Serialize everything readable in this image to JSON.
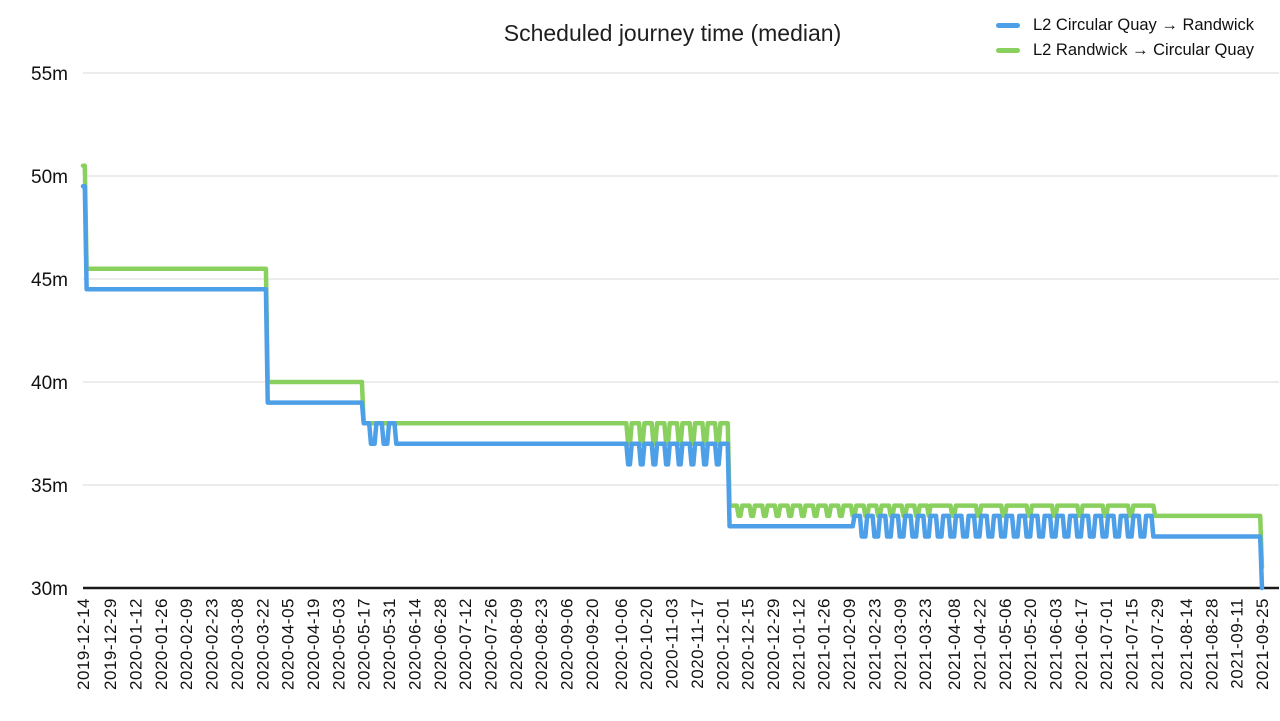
{
  "chart_data": {
    "type": "line",
    "title": "Scheduled journey time (median)",
    "ylabel": "",
    "xlabel": "",
    "y_unit": "minutes",
    "y_range": [
      30,
      55
    ],
    "y_ticks": [
      "30m",
      "35m",
      "40m",
      "45m",
      "50m",
      "55m"
    ],
    "y_tick_values": [
      30,
      35,
      40,
      45,
      50,
      55
    ],
    "grid": "horizontal",
    "legend_position": "top-right",
    "x_range": [
      "2019-12-14",
      "2021-09-25"
    ],
    "x_tick_labels": [
      "2019-12-14",
      "2019-12-29",
      "2020-01-12",
      "2020-01-26",
      "2020-02-09",
      "2020-02-23",
      "2020-03-08",
      "2020-03-22",
      "2020-04-05",
      "2020-04-19",
      "2020-05-03",
      "2020-05-17",
      "2020-05-31",
      "2020-06-14",
      "2020-06-28",
      "2020-07-12",
      "2020-07-26",
      "2020-08-09",
      "2020-08-23",
      "2020-09-06",
      "2020-09-20",
      "2020-10-06",
      "2020-10-20",
      "2020-11-03",
      "2020-11-17",
      "2020-12-01",
      "2020-12-15",
      "2020-12-29",
      "2021-01-12",
      "2021-01-26",
      "2021-02-09",
      "2021-02-23",
      "2021-03-09",
      "2021-03-23",
      "2021-04-08",
      "2021-04-22",
      "2021-05-06",
      "2021-05-20",
      "2021-06-03",
      "2021-06-17",
      "2021-07-01",
      "2021-07-15",
      "2021-07-29",
      "2021-08-14",
      "2021-08-28",
      "2021-09-11",
      "2021-09-25"
    ],
    "series": [
      {
        "name": "L2 Randwick → Circular Quay",
        "color": "#8ad05f",
        "note": "daily step series; segments give constant value or weekly high/low oscillation in minutes",
        "segments": [
          {
            "from": "2019-12-14",
            "to": "2019-12-15",
            "high": 50.5,
            "low": 50.5,
            "high_days": 7,
            "low_days": 0
          },
          {
            "from": "2019-12-16",
            "to": "2020-03-24",
            "high": 45.5,
            "low": 45.5,
            "high_days": 7,
            "low_days": 0
          },
          {
            "from": "2020-03-25",
            "to": "2020-05-16",
            "high": 40,
            "low": 40,
            "high_days": 7,
            "low_days": 0
          },
          {
            "from": "2020-05-17",
            "to": "2020-10-04",
            "high": 38,
            "low": 38,
            "high_days": 7,
            "low_days": 0
          },
          {
            "from": "2020-10-05",
            "to": "2020-12-04",
            "high": 38,
            "low": 37,
            "high_days": 5,
            "low_days": 2
          },
          {
            "from": "2020-12-05",
            "to": "2021-03-25",
            "high": 34,
            "low": 33.5,
            "high_days": 5,
            "low_days": 2
          },
          {
            "from": "2021-03-26",
            "to": "2021-07-28",
            "high": 34,
            "low": 33.5,
            "high_days": 12,
            "low_days": 2
          },
          {
            "from": "2021-07-29",
            "to": "2021-09-24",
            "high": 33.5,
            "low": 33.5,
            "high_days": 7,
            "low_days": 0
          },
          {
            "from": "2021-09-25",
            "to": "2021-09-25",
            "high": 31,
            "low": 31,
            "high_days": 7,
            "low_days": 0
          }
        ]
      },
      {
        "name": "L2 Circular Quay → Randwick",
        "color": "#4d9fe8",
        "note": "daily step series; segments give constant value or weekly high/low oscillation in minutes",
        "segments": [
          {
            "from": "2019-12-14",
            "to": "2019-12-15",
            "high": 49.5,
            "low": 49.5,
            "high_days": 7,
            "low_days": 0
          },
          {
            "from": "2019-12-16",
            "to": "2020-03-24",
            "high": 44.5,
            "low": 44.5,
            "high_days": 7,
            "low_days": 0
          },
          {
            "from": "2020-03-25",
            "to": "2020-05-16",
            "high": 39,
            "low": 39,
            "high_days": 7,
            "low_days": 0
          },
          {
            "from": "2020-05-17",
            "to": "2020-06-06",
            "high": 38,
            "low": 37,
            "high_days": 4,
            "low_days": 3
          },
          {
            "from": "2020-06-07",
            "to": "2020-10-04",
            "high": 37,
            "low": 37,
            "high_days": 7,
            "low_days": 0
          },
          {
            "from": "2020-10-05",
            "to": "2020-12-04",
            "high": 37,
            "low": 36,
            "high_days": 5,
            "low_days": 2
          },
          {
            "from": "2020-12-05",
            "to": "2021-02-11",
            "high": 33,
            "low": 33,
            "high_days": 7,
            "low_days": 0
          },
          {
            "from": "2021-02-12",
            "to": "2021-07-28",
            "high": 33.5,
            "low": 32.5,
            "high_days": 4,
            "low_days": 3
          },
          {
            "from": "2021-07-29",
            "to": "2021-09-24",
            "high": 32.5,
            "low": 32.5,
            "high_days": 7,
            "low_days": 0
          },
          {
            "from": "2021-09-25",
            "to": "2021-09-25",
            "high": 30,
            "low": 30,
            "high_days": 7,
            "low_days": 0
          }
        ]
      }
    ],
    "legend": [
      {
        "label": "L2 Circular Quay → Randwick",
        "color": "#4d9fe8"
      },
      {
        "label": "L2 Randwick → Circular Quay",
        "color": "#8ad05f"
      }
    ],
    "colors": {
      "blue_line": "#4d9fe8",
      "green_line": "#8ad05f",
      "gridline": "#d9d9d9",
      "axis_line": "#1a1a1a",
      "text": "#111111"
    }
  }
}
